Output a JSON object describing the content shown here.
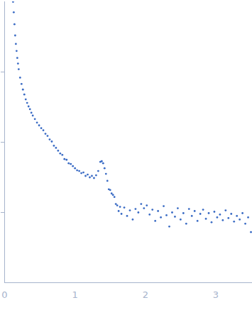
{
  "chart_data": {
    "type": "scatter",
    "color": "#3a6bc4",
    "marker": "circle",
    "tick_labels": "x",
    "xlim": [
      0,
      3.52
    ],
    "xticks": [
      0,
      1,
      2,
      3
    ],
    "ylim": [
      0,
      4
    ],
    "yticks": [
      1,
      2,
      3
    ],
    "x": [
      0.12,
      0.13,
      0.14,
      0.15,
      0.16,
      0.17,
      0.18,
      0.19,
      0.2,
      0.22,
      0.24,
      0.26,
      0.28,
      0.3,
      0.32,
      0.34,
      0.36,
      0.38,
      0.4,
      0.43,
      0.46,
      0.49,
      0.52,
      0.55,
      0.58,
      0.61,
      0.64,
      0.67,
      0.7,
      0.73,
      0.76,
      0.79,
      0.82,
      0.85,
      0.88,
      0.91,
      0.94,
      0.97,
      1.0,
      1.03,
      1.06,
      1.09,
      1.12,
      1.15,
      1.18,
      1.21,
      1.24,
      1.27,
      1.3,
      1.33,
      1.36,
      1.38,
      1.4,
      1.42,
      1.44,
      1.46,
      1.48,
      1.5,
      1.52,
      1.54,
      1.56,
      1.58,
      1.6,
      1.62,
      1.64,
      1.66,
      1.7,
      1.74,
      1.78,
      1.82,
      1.86,
      1.9,
      1.94,
      1.98,
      2.02,
      2.06,
      2.1,
      2.14,
      2.18,
      2.22,
      2.26,
      2.3,
      2.34,
      2.38,
      2.42,
      2.46,
      2.5,
      2.54,
      2.58,
      2.62,
      2.66,
      2.7,
      2.74,
      2.78,
      2.82,
      2.86,
      2.9,
      2.94,
      2.98,
      3.02,
      3.06,
      3.1,
      3.14,
      3.18,
      3.22,
      3.26,
      3.3,
      3.34,
      3.38,
      3.42,
      3.46,
      3.5
    ],
    "values": [
      4.0,
      3.85,
      3.68,
      3.52,
      3.4,
      3.3,
      3.2,
      3.12,
      3.04,
      2.92,
      2.83,
      2.75,
      2.68,
      2.61,
      2.56,
      2.51,
      2.47,
      2.42,
      2.38,
      2.33,
      2.28,
      2.24,
      2.2,
      2.17,
      2.12,
      2.09,
      2.04,
      2.01,
      1.95,
      1.92,
      1.88,
      1.84,
      1.82,
      1.76,
      1.75,
      1.7,
      1.69,
      1.66,
      1.63,
      1.6,
      1.59,
      1.56,
      1.57,
      1.52,
      1.54,
      1.5,
      1.52,
      1.49,
      1.53,
      1.59,
      1.72,
      1.73,
      1.7,
      1.63,
      1.55,
      1.45,
      1.33,
      1.32,
      1.27,
      1.25,
      1.22,
      1.12,
      1.1,
      1.02,
      1.08,
      0.98,
      1.07,
      0.95,
      1.03,
      0.9,
      1.05,
      1.0,
      1.12,
      1.06,
      1.1,
      0.97,
      1.04,
      0.88,
      1.02,
      0.93,
      1.09,
      0.96,
      0.8,
      1.0,
      0.94,
      1.06,
      0.9,
      0.99,
      0.84,
      1.05,
      0.95,
      1.02,
      0.88,
      0.98,
      1.04,
      0.91,
      0.99,
      0.86,
      1.01,
      0.93,
      0.97,
      0.89,
      1.03,
      0.92,
      0.98,
      0.87,
      0.95,
      0.9,
      0.99,
      0.84,
      0.93,
      0.72
    ]
  }
}
